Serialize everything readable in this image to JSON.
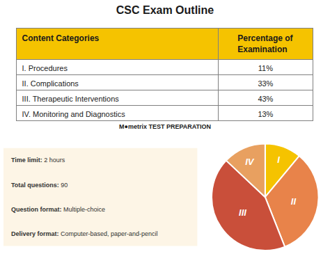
{
  "chart_data": [
    {
      "type": "table",
      "title": "CSC Exam Outline",
      "xlabel": "Content Categories",
      "ylabel": "Percentage of\nExamination",
      "categories": [
        "I. Procedures",
        "II. Complications",
        "III. Therapeutic Interventions",
        "IV. Monitoring and Diagnostics"
      ],
      "values": [
        11,
        33,
        43,
        13
      ],
      "value_labels": [
        "11%",
        "33%",
        "43%",
        "13%"
      ],
      "color": "#F5C300",
      "annotations": [
        "M●metrix TEST PREPARATION"
      ]
    },
    {
      "type": "info",
      "annotations": [
        [
          "Time limit:",
          "2 hours"
        ],
        [
          "Total questions:",
          "90"
        ],
        [
          "Question format:",
          "Multiple-choice"
        ],
        [
          "Delivery format:",
          "Computer-based, paper-and-pencil"
        ]
      ],
      "color": "#FDF5E6"
    },
    {
      "type": "pie",
      "categories": [
        "I",
        "II",
        "III",
        "IV"
      ],
      "values": [
        11,
        33,
        43,
        13
      ],
      "colors": [
        "#F5C300",
        "#E8834A",
        "#C94F3A",
        "#E8A060"
      ]
    }
  ]
}
